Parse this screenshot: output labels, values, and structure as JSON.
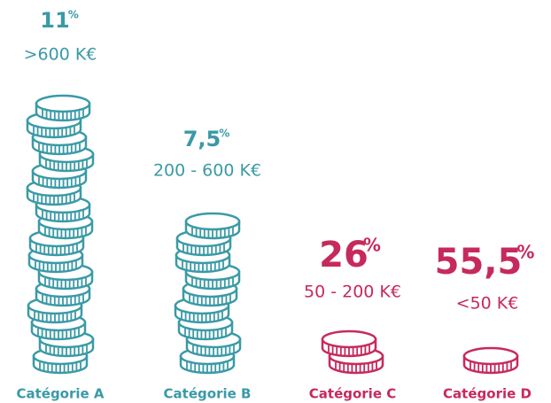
{
  "chart_data": {
    "type": "pictorial",
    "categories": [
      "Catégorie A",
      "Catégorie B",
      "Catégorie C",
      "Catégorie D"
    ],
    "ranges": [
      ">600 K€",
      "200 - 600 K€",
      "50 - 200 K€",
      "<50 K€"
    ],
    "values": [
      11,
      7.5,
      26,
      55.5
    ],
    "value_labels": [
      "11",
      "7,5",
      "26",
      "55,5"
    ],
    "unit": "%",
    "colors": [
      "#3a9aa6",
      "#3a9aa6",
      "#c62a5c",
      "#c62a5c"
    ]
  }
}
